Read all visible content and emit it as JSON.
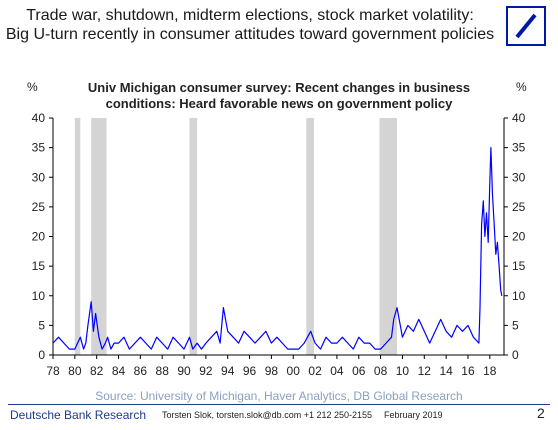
{
  "header": {
    "title_line1": "Trade war, shutdown, midterm elections, stock market volatility:",
    "title_line2": "Big U-turn recently in consumer attitudes toward government policies"
  },
  "chart_data": {
    "type": "line",
    "title_line1": "Univ Michigan consumer survey: Recent changes in business",
    "title_line2": "conditions: Heard favorable news on government policy",
    "ylabel_left": "%",
    "ylabel_right": "%",
    "xlim": [
      1978,
      2019.3
    ],
    "ylim": [
      0,
      40
    ],
    "yticks": [
      0,
      5,
      10,
      15,
      20,
      25,
      30,
      35,
      40
    ],
    "xtick_values": [
      1978,
      1980,
      1982,
      1984,
      1986,
      1988,
      1990,
      1992,
      1994,
      1996,
      1998,
      2000,
      2002,
      2004,
      2006,
      2008,
      2010,
      2012,
      2014,
      2016,
      2018
    ],
    "xtick_labels": [
      "78",
      "80",
      "82",
      "84",
      "86",
      "88",
      "90",
      "92",
      "94",
      "96",
      "98",
      "00",
      "02",
      "04",
      "06",
      "08",
      "10",
      "12",
      "14",
      "16",
      "18"
    ],
    "grid": false,
    "recessions": [
      [
        1980.0,
        1980.5
      ],
      [
        1981.5,
        1982.9
      ],
      [
        1990.5,
        1991.2
      ],
      [
        2001.2,
        2001.9
      ],
      [
        2007.9,
        2009.5
      ]
    ],
    "series": [
      {
        "color": "#0000ff",
        "x": [
          1978.0,
          1978.5,
          1979.0,
          1979.5,
          1980.0,
          1980.5,
          1980.8,
          1981.0,
          1981.2,
          1981.5,
          1981.7,
          1981.9,
          1982.2,
          1982.5,
          1982.8,
          1983.0,
          1983.3,
          1983.6,
          1984.0,
          1984.5,
          1985.0,
          1985.5,
          1986.0,
          1986.5,
          1987.0,
          1987.5,
          1988.0,
          1988.5,
          1989.0,
          1989.5,
          1990.0,
          1990.5,
          1990.8,
          1991.2,
          1991.6,
          1992.0,
          1992.5,
          1993.0,
          1993.3,
          1993.6,
          1994.0,
          1994.5,
          1995.0,
          1995.5,
          1996.0,
          1996.5,
          1997.0,
          1997.5,
          1998.0,
          1998.5,
          1999.0,
          1999.5,
          2000.0,
          2000.5,
          2001.0,
          2001.3,
          2001.6,
          2002.0,
          2002.5,
          2003.0,
          2003.5,
          2004.0,
          2004.5,
          2005.0,
          2005.5,
          2006.0,
          2006.5,
          2007.0,
          2007.5,
          2008.0,
          2008.5,
          2009.0,
          2009.2,
          2009.5,
          2009.8,
          2010.0,
          2010.5,
          2011.0,
          2011.5,
          2012.0,
          2012.5,
          2013.0,
          2013.5,
          2014.0,
          2014.5,
          2015.0,
          2015.5,
          2016.0,
          2016.5,
          2017.0,
          2017.1,
          2017.25,
          2017.4,
          2017.55,
          2017.7,
          2017.85,
          2018.0,
          2018.1,
          2018.25,
          2018.4,
          2018.55,
          2018.7,
          2018.85,
          2019.0,
          2019.1
        ],
        "y": [
          2,
          3,
          2,
          1,
          1,
          3,
          1,
          2,
          5,
          9,
          4,
          7,
          3,
          1,
          2,
          3,
          1,
          2,
          2,
          3,
          1,
          2,
          3,
          2,
          1,
          3,
          2,
          1,
          3,
          2,
          1,
          3,
          1,
          2,
          1,
          2,
          3,
          4,
          2,
          8,
          4,
          3,
          2,
          4,
          3,
          2,
          3,
          4,
          2,
          3,
          2,
          1,
          1,
          1,
          2,
          3,
          4,
          2,
          1,
          3,
          2,
          2,
          3,
          2,
          1,
          3,
          2,
          2,
          1,
          1,
          2,
          3,
          6,
          8,
          5,
          3,
          5,
          4,
          6,
          4,
          2,
          4,
          6,
          4,
          3,
          5,
          4,
          5,
          3,
          2,
          8,
          22,
          26,
          20,
          24,
          19,
          29,
          35,
          27,
          22,
          17,
          19,
          15,
          11,
          10
        ]
      }
    ]
  },
  "source": "Source: University of Michigan, Haver Analytics, DB Global Research",
  "footer": {
    "brand": "Deutsche Bank Research",
    "author": "Torsten Slok, torsten.slok@db.com +1 212 250-2155",
    "date": "February 2019",
    "page": "2"
  }
}
